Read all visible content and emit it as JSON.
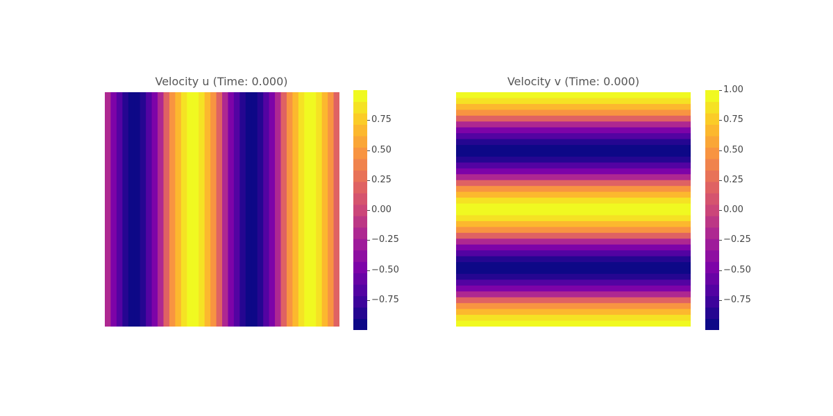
{
  "chart_data": [
    {
      "type": "heatmap",
      "title": "Velocity u (Time: 0.000)",
      "field": "u",
      "orientation": "vertical-bands",
      "pattern": "periodic with two full periods across the domain",
      "colormap": "plasma",
      "levels": 21,
      "value_range": [
        -1.0,
        1.0
      ],
      "colorbar_ticks": [
        "0.75",
        "0.50",
        "0.25",
        "0.00",
        "−0.25",
        "−0.50",
        "−0.75"
      ],
      "colorbar_tick_values": [
        0.75,
        0.5,
        0.25,
        0.0,
        -0.25,
        -0.5,
        -0.75
      ]
    },
    {
      "type": "heatmap",
      "title": "Velocity v (Time: 0.000)",
      "field": "v",
      "orientation": "horizontal-bands",
      "pattern": "periodic with two full periods across the domain",
      "colormap": "plasma",
      "levels": 21,
      "value_range": [
        -1.0,
        1.0
      ],
      "colorbar_ticks": [
        "1.00",
        "0.75",
        "0.50",
        "0.25",
        "0.00",
        "−0.25",
        "−0.50",
        "−0.75"
      ],
      "colorbar_tick_values": [
        1.0,
        0.75,
        0.5,
        0.25,
        0.0,
        -0.25,
        -0.5,
        -0.75
      ]
    }
  ]
}
